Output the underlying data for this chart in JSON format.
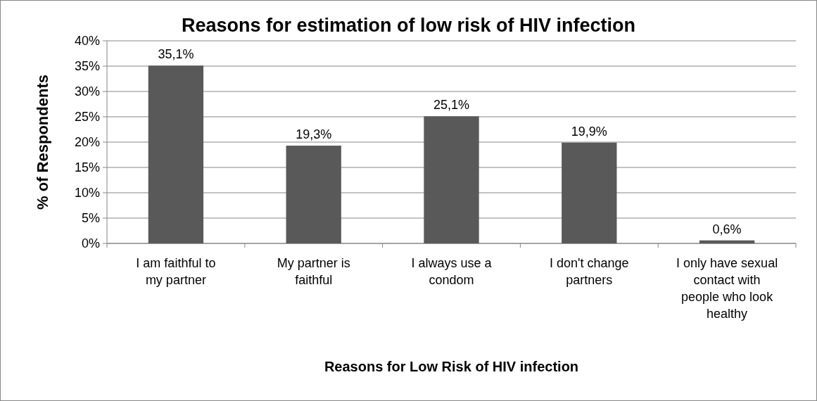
{
  "chart_data": {
    "type": "bar",
    "title": "Reasons for estimation of low risk of HIV infection",
    "xlabel": "Reasons for Low Risk of HIV infection",
    "ylabel": "% of Respondents",
    "categories": [
      "I am faithful to my partner",
      "My partner is faithful",
      "I always use a condom",
      "I don't change partners",
      "I only have sexual contact with people who look healthy"
    ],
    "values": [
      35.1,
      19.3,
      25.1,
      19.9,
      0.6
    ],
    "value_labels": [
      "35,1%",
      "19,3%",
      "25,1%",
      "19,9%",
      "0,6%"
    ],
    "color": "#595959",
    "ylim": [
      0,
      40
    ],
    "yticks": [
      {
        "value": 0,
        "label": "0%"
      },
      {
        "value": 5,
        "label": "5%"
      },
      {
        "value": 10,
        "label": "10%"
      },
      {
        "value": 15,
        "label": "15%"
      },
      {
        "value": 20,
        "label": "20%"
      },
      {
        "value": 25,
        "label": "25%"
      },
      {
        "value": 30,
        "label": "30%"
      },
      {
        "value": 35,
        "label": "35%"
      },
      {
        "value": 40,
        "label": "40%"
      }
    ],
    "grid": "y"
  }
}
